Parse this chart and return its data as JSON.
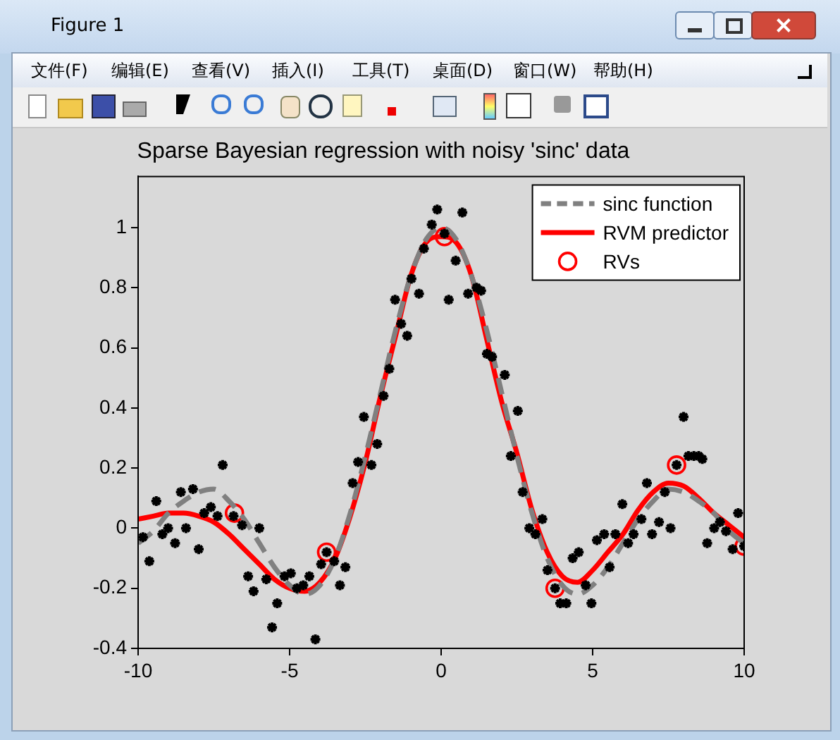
{
  "chart_data": {
    "type": "line",
    "title": "Sparse Bayesian regression with noisy 'sinc' data",
    "annotations": [
      "Figure 1",
      "文件(F)",
      "编辑(E)",
      "查看(V)",
      "插入(I)",
      "工具(T)",
      "桌面(D)",
      "窗口(W)",
      "帮助(H)"
    ],
    "xlim": [
      -10,
      10
    ],
    "xticks": [
      -10,
      -5,
      0,
      5,
      10
    ],
    "ylim": [
      -0.4,
      1.17
    ],
    "yticks": [
      -0.4,
      -0.2,
      0,
      0.2,
      0.4,
      0.6,
      0.8,
      1
    ],
    "legend": "top right",
    "series": [
      {
        "type": "scatter",
        "marker": "cross",
        "color": "#000000",
        "x": [
          -9.84,
          -9.63,
          -9.4,
          -9.2,
          -9.01,
          -8.78,
          -8.59,
          -8.42,
          -8.19,
          -8.0,
          -7.82,
          -7.6,
          -7.38,
          -7.21,
          -6.85,
          -6.57,
          -6.37,
          -6.19,
          -6.0,
          -5.77,
          -5.58,
          -5.41,
          -5.17,
          -4.96,
          -4.76,
          -4.55,
          -4.35,
          -4.15,
          -3.96,
          -3.78,
          -3.53,
          -3.34,
          -3.16,
          -2.92,
          -2.74,
          -2.55,
          -2.3,
          -2.11,
          -1.9,
          -1.71,
          -1.52,
          -1.32,
          -1.12,
          -0.98,
          -0.73,
          -0.57,
          -0.31,
          -0.13,
          0.11,
          0.25,
          0.48,
          0.7,
          0.89,
          1.17,
          1.32,
          1.51,
          1.68,
          2.1,
          2.3,
          2.53,
          2.69,
          2.91,
          3.11,
          3.34,
          3.51,
          3.76,
          3.93,
          4.13,
          4.34,
          4.54,
          4.77,
          4.96,
          5.14,
          5.38,
          5.56,
          5.75,
          5.98,
          6.17,
          6.35,
          6.61,
          6.79,
          6.96,
          7.19,
          7.38,
          7.57,
          7.77,
          8.0,
          8.16,
          8.34,
          8.5,
          8.62,
          8.78,
          9.01,
          9.2,
          9.4,
          9.62,
          9.8,
          10.0
        ],
        "values": [
          -0.03,
          -0.11,
          0.09,
          -0.02,
          0.0,
          -0.05,
          0.12,
          0.0,
          0.13,
          -0.07,
          0.05,
          0.07,
          0.04,
          0.21,
          0.04,
          0.01,
          -0.16,
          -0.21,
          0.0,
          -0.17,
          -0.33,
          -0.25,
          -0.16,
          -0.15,
          -0.2,
          -0.19,
          -0.16,
          -0.37,
          -0.12,
          -0.08,
          -0.11,
          -0.19,
          -0.13,
          0.15,
          0.22,
          0.37,
          0.21,
          0.28,
          0.44,
          0.53,
          0.76,
          0.68,
          0.64,
          0.83,
          0.78,
          0.93,
          1.01,
          1.06,
          0.98,
          0.76,
          0.89,
          1.05,
          0.78,
          0.8,
          0.79,
          0.58,
          0.57,
          0.51,
          0.24,
          0.39,
          0.12,
          0.0,
          -0.02,
          0.03,
          -0.14,
          -0.2,
          -0.25,
          -0.25,
          -0.1,
          -0.08,
          -0.19,
          -0.25,
          -0.04,
          -0.02,
          -0.13,
          -0.02,
          0.08,
          -0.05,
          -0.02,
          0.03,
          0.15,
          -0.02,
          0.02,
          0.12,
          0.0,
          0.21,
          0.37,
          0.24,
          0.24,
          0.24,
          0.23,
          -0.05,
          0.0,
          0.02,
          -0.01,
          -0.07,
          0.05,
          -0.06
        ]
      },
      {
        "type": "line",
        "name": "sinc function",
        "color": "#808080",
        "line_style": "dashed",
        "x": [
          -10,
          -9.5,
          -9,
          -8.5,
          -8,
          -7.5,
          -7,
          -6.5,
          -6,
          -5.5,
          -5,
          -4.5,
          -4,
          -3.5,
          -3,
          -2.5,
          -2,
          -1.5,
          -1,
          -0.5,
          0,
          0.5,
          1,
          1.5,
          2,
          2.5,
          3,
          3.5,
          4,
          4.5,
          5,
          5.5,
          6,
          6.5,
          7,
          7.5,
          8,
          8.5,
          9,
          9.5,
          10
        ],
        "values": [
          -0.05,
          -0.01,
          0.05,
          0.09,
          0.12,
          0.13,
          0.09,
          0.03,
          -0.05,
          -0.13,
          -0.19,
          -0.22,
          -0.19,
          -0.1,
          0.05,
          0.24,
          0.45,
          0.66,
          0.84,
          0.96,
          1.0,
          0.96,
          0.84,
          0.66,
          0.45,
          0.24,
          0.05,
          -0.1,
          -0.19,
          -0.22,
          -0.19,
          -0.13,
          -0.05,
          0.03,
          0.09,
          0.13,
          0.12,
          0.09,
          0.05,
          -0.01,
          -0.05
        ]
      },
      {
        "type": "line",
        "name": "RVM predictor",
        "color": "#ff0000",
        "line_style": "solid",
        "x": [
          -10,
          -9.5,
          -9,
          -8.5,
          -8,
          -7.5,
          -7,
          -6.5,
          -6,
          -5.5,
          -5,
          -4.5,
          -4,
          -3.5,
          -3,
          -2.5,
          -2,
          -1.5,
          -1,
          -0.5,
          0,
          0.5,
          1,
          1.5,
          2,
          2.5,
          3,
          3.5,
          4,
          4.5,
          5,
          5.5,
          6,
          6.5,
          7,
          7.5,
          8,
          8.5,
          9,
          9.5,
          10
        ],
        "values": [
          0.03,
          0.04,
          0.05,
          0.05,
          0.04,
          0.02,
          -0.02,
          -0.07,
          -0.12,
          -0.17,
          -0.2,
          -0.21,
          -0.18,
          -0.1,
          0.04,
          0.22,
          0.44,
          0.64,
          0.84,
          0.95,
          0.97,
          0.95,
          0.84,
          0.63,
          0.42,
          0.25,
          0.06,
          -0.08,
          -0.16,
          -0.18,
          -0.14,
          -0.08,
          -0.02,
          0.06,
          0.12,
          0.15,
          0.14,
          0.1,
          0.05,
          0.01,
          -0.03
        ]
      },
      {
        "type": "scatter",
        "name": "RVs",
        "marker": "circle",
        "color": "#ff0000",
        "x": [
          -6.82,
          -3.78,
          0.11,
          3.76,
          7.77,
          10.0
        ],
        "values": [
          0.05,
          -0.08,
          0.97,
          -0.2,
          0.21,
          -0.06
        ]
      }
    ]
  }
}
